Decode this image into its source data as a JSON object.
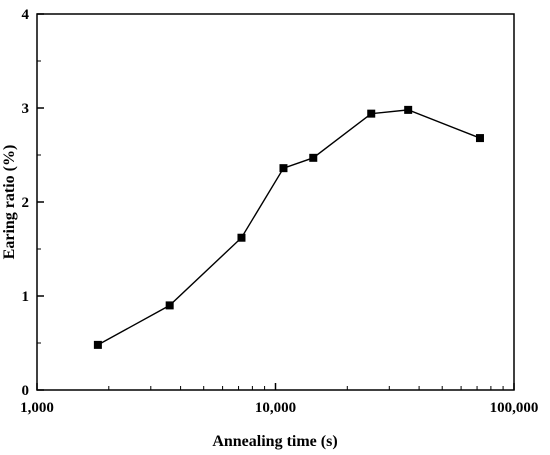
{
  "chart_data": {
    "type": "line",
    "xlabel": "Annealing time (s)",
    "ylabel": "Earing ratio (%)",
    "x_scale": "log",
    "xlim": [
      1000,
      100000
    ],
    "ylim": [
      0,
      4
    ],
    "x_ticks": [
      1000,
      10000,
      100000
    ],
    "x_tick_labels": [
      "1,000",
      "10,000",
      "100,000"
    ],
    "y_ticks": [
      0,
      1,
      2,
      3,
      4
    ],
    "y_tick_labels": [
      "0",
      "1",
      "2",
      "3",
      "4"
    ],
    "grid": false,
    "marker": "square",
    "series": [
      {
        "x": [
          1800,
          3600,
          7200,
          10800,
          14400,
          25200,
          36000,
          72000
        ],
        "y": [
          0.48,
          0.9,
          1.62,
          2.36,
          2.47,
          2.94,
          2.98,
          2.68
        ]
      }
    ],
    "colors": {
      "line": "#000000",
      "marker": "#000000"
    }
  }
}
